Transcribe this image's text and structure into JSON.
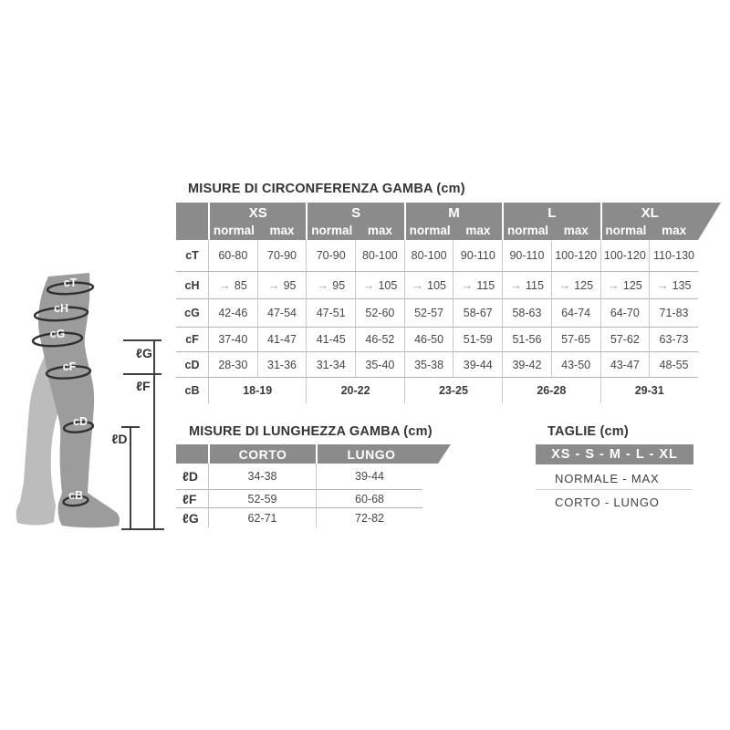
{
  "diagram": {
    "bands": [
      "cT",
      "cH",
      "cG",
      "cF",
      "cD",
      "cB"
    ],
    "length_markers": [
      "ℓG",
      "ℓF",
      "ℓD"
    ]
  },
  "circumference_table": {
    "title": "MISURE DI CIRCONFERENZA GAMBA (cm)",
    "size_groups": [
      "XS",
      "S",
      "M",
      "L",
      "XL"
    ],
    "sub_headers": [
      "normal",
      "max"
    ],
    "arrow_glyph": "→",
    "rows": [
      {
        "label": "cT",
        "values": [
          "60-80",
          "70-90",
          "70-90",
          "80-100",
          "80-100",
          "90-110",
          "90-110",
          "100-120",
          "100-120",
          "110-130"
        ]
      },
      {
        "label": "cH",
        "arrow": true,
        "values": [
          "85",
          "95",
          "95",
          "105",
          "105",
          "115",
          "115",
          "125",
          "125",
          "135"
        ]
      },
      {
        "label": "cG",
        "values": [
          "42-46",
          "47-54",
          "47-51",
          "52-60",
          "52-57",
          "58-67",
          "58-63",
          "64-74",
          "64-70",
          "71-83"
        ]
      },
      {
        "label": "cF",
        "values": [
          "37-40",
          "41-47",
          "41-45",
          "46-52",
          "46-50",
          "51-59",
          "51-56",
          "57-65",
          "57-62",
          "63-73"
        ]
      },
      {
        "label": "cD",
        "values": [
          "28-30",
          "31-36",
          "31-34",
          "35-40",
          "35-38",
          "39-44",
          "39-42",
          "43-50",
          "43-47",
          "48-55"
        ]
      },
      {
        "label": "cB",
        "span_values": [
          "18-19",
          "20-22",
          "23-25",
          "26-28",
          "29-31"
        ]
      }
    ]
  },
  "length_table": {
    "title": "MISURE DI LUNGHEZZA GAMBA (cm)",
    "columns": [
      "CORTO",
      "LUNGO"
    ],
    "rows": [
      {
        "label": "ℓD",
        "values": [
          "34-38",
          "39-44"
        ]
      },
      {
        "label": "ℓF",
        "values": [
          "52-59",
          "60-68"
        ]
      },
      {
        "label": "ℓG",
        "values": [
          "62-71",
          "72-82"
        ]
      }
    ]
  },
  "sizes_panel": {
    "title": "TAGLIE (cm)",
    "banner": "XS - S - M - L - XL",
    "line1": "NORMALE - MAX",
    "line2": "CORTO - LUNGO"
  },
  "colors": {
    "header_gray": "#8b8b8b",
    "leg_front": "#9c9c9c",
    "leg_back": "#bcbcbc",
    "band": "#2f2f2f",
    "text_dark": "#3a3a3a"
  }
}
